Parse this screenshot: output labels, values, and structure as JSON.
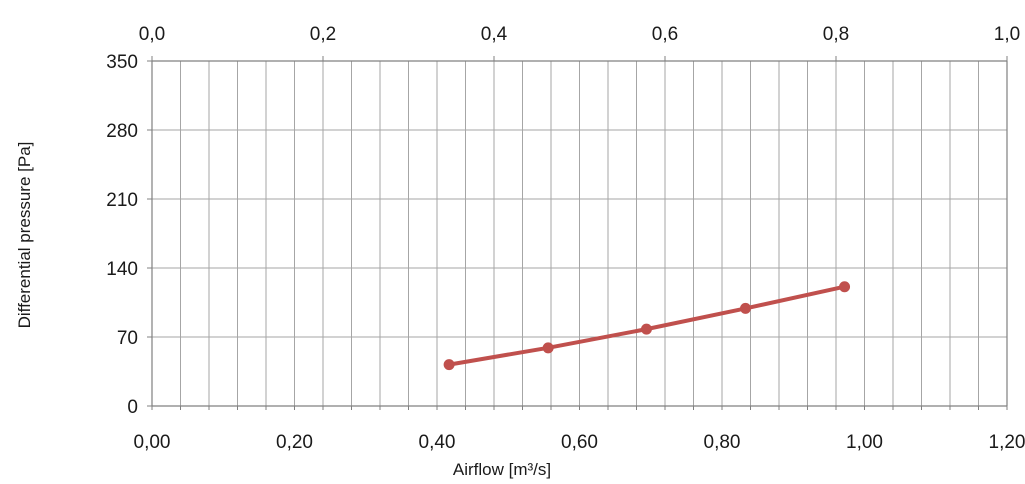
{
  "chart_data": {
    "type": "line",
    "xlabel": "Airflow  [m³/s]",
    "ylabel": "Differential pressure [Pa]",
    "xlim": [
      0,
      1.2
    ],
    "ylim": [
      0,
      350
    ],
    "x2lim": [
      0,
      1.0
    ],
    "x_ticks": [
      "0,00",
      "0,20",
      "0,40",
      "0,60",
      "0,80",
      "1,00",
      "1,20"
    ],
    "x2_ticks": [
      "0,0",
      "0,2",
      "0,4",
      "0,6",
      "0,8",
      "1,0"
    ],
    "y_ticks": [
      "0",
      "70",
      "140",
      "210",
      "280",
      "350"
    ],
    "grid": true,
    "series": [
      {
        "color": "#c0504d",
        "points": [
          {
            "x": 0.417,
            "y": 42
          },
          {
            "x": 0.556,
            "y": 59
          },
          {
            "x": 0.694,
            "y": 78
          },
          {
            "x": 0.833,
            "y": 99
          },
          {
            "x": 0.972,
            "y": 121
          }
        ]
      }
    ]
  }
}
